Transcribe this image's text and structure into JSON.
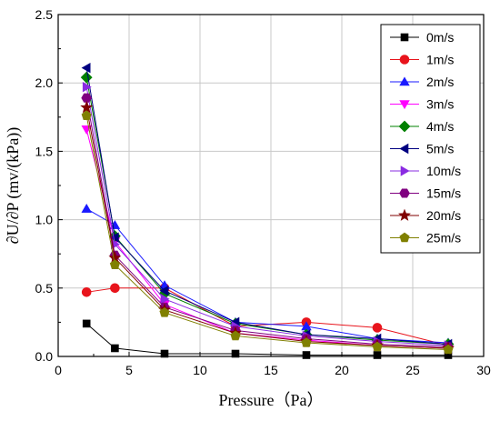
{
  "chart_data": {
    "type": "line",
    "title": "",
    "xlabel": "Pressure（Pa）",
    "ylabel": "∂U/∂P (mv/(kPa))",
    "xlim": [
      0,
      30
    ],
    "ylim": [
      0,
      2.5
    ],
    "xticks": [
      "0",
      "5",
      "10",
      "15",
      "20",
      "25",
      "30"
    ],
    "yticks": [
      "0.0",
      "0.5",
      "1.0",
      "1.5",
      "2.0",
      "2.5"
    ],
    "grid": true,
    "legend_position": "top-right",
    "x": [
      2,
      4,
      7.5,
      12.5,
      17.5,
      22.5,
      27.5
    ],
    "series": [
      {
        "name": "0m/s",
        "color": "#000000",
        "marker": "square",
        "values": [
          0.24,
          0.06,
          0.02,
          0.02,
          0.01,
          0.01,
          0.01
        ]
      },
      {
        "name": "1m/s",
        "color": "#e8141c",
        "marker": "circle",
        "values": [
          0.47,
          0.5,
          0.5,
          0.22,
          0.25,
          0.21,
          0.08
        ]
      },
      {
        "name": "2m/s",
        "color": "#1a1aff",
        "marker": "triangle-up",
        "values": [
          1.08,
          0.96,
          0.52,
          0.25,
          0.22,
          0.13,
          0.1
        ]
      },
      {
        "name": "3m/s",
        "color": "#ff00ff",
        "marker": "triangle-down",
        "values": [
          1.66,
          0.84,
          0.38,
          0.17,
          0.12,
          0.08,
          0.06
        ]
      },
      {
        "name": "4m/s",
        "color": "#008000",
        "marker": "diamond",
        "values": [
          2.04,
          0.88,
          0.46,
          0.24,
          0.16,
          0.12,
          0.09
        ]
      },
      {
        "name": "5m/s",
        "color": "#000080",
        "marker": "triangle-left",
        "values": [
          2.11,
          0.87,
          0.48,
          0.25,
          0.16,
          0.13,
          0.09
        ]
      },
      {
        "name": "10m/s",
        "color": "#8a2be2",
        "marker": "triangle-right",
        "values": [
          1.97,
          0.82,
          0.42,
          0.22,
          0.15,
          0.11,
          0.08
        ]
      },
      {
        "name": "15m/s",
        "color": "#800080",
        "marker": "hexagon",
        "values": [
          1.89,
          0.74,
          0.36,
          0.19,
          0.13,
          0.09,
          0.07
        ]
      },
      {
        "name": "20m/s",
        "color": "#800000",
        "marker": "star",
        "values": [
          1.82,
          0.72,
          0.34,
          0.17,
          0.11,
          0.08,
          0.06
        ]
      },
      {
        "name": "25m/s",
        "color": "#808000",
        "marker": "pentagon",
        "values": [
          1.76,
          0.67,
          0.32,
          0.15,
          0.1,
          0.07,
          0.05
        ]
      }
    ]
  }
}
